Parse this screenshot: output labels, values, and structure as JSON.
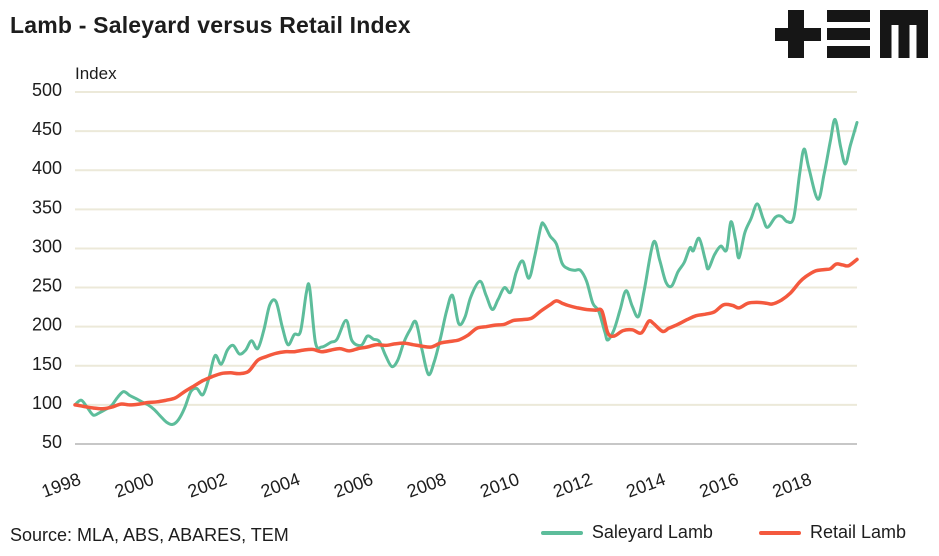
{
  "header": {
    "title": "Lamb - Saleyard versus Retail Index",
    "logo_name": "TEM"
  },
  "footer": {
    "source": "Source: MLA, ABS, ABARES, TEM"
  },
  "style": {
    "text_color": "#1d1d1d",
    "grid_color": "#ece9d9",
    "axis_color": "#c7c7c7",
    "background": "#ffffff",
    "logo_color": "#161616"
  },
  "chart_data": {
    "type": "line",
    "title": "Lamb - Saleyard versus Retail Index",
    "y_axis_title": "Index",
    "ylim": [
      50,
      500
    ],
    "y_ticks": [
      50,
      100,
      150,
      200,
      250,
      300,
      350,
      400,
      450,
      500
    ],
    "x_ticks": [
      1998,
      2000,
      2002,
      2004,
      2006,
      2008,
      2010,
      2012,
      2014,
      2016,
      2018
    ],
    "x_range": [
      1998,
      2019.4
    ],
    "grid": "horizontal",
    "legend_position": "bottom-right",
    "series": [
      {
        "name": "Saleyard Lamb",
        "color": "#5dbd9b",
        "points": [
          [
            1998.0,
            100
          ],
          [
            1998.17,
            106
          ],
          [
            1998.33,
            97
          ],
          [
            1998.5,
            87
          ],
          [
            1998.67,
            90
          ],
          [
            1998.83,
            94
          ],
          [
            1999.0,
            99
          ],
          [
            1999.17,
            110
          ],
          [
            1999.33,
            117
          ],
          [
            1999.5,
            112
          ],
          [
            1999.67,
            108
          ],
          [
            1999.83,
            104
          ],
          [
            2000.0,
            100
          ],
          [
            2000.17,
            94
          ],
          [
            2000.33,
            86
          ],
          [
            2000.5,
            78
          ],
          [
            2000.67,
            75
          ],
          [
            2000.83,
            81
          ],
          [
            2001.0,
            96
          ],
          [
            2001.17,
            117
          ],
          [
            2001.33,
            121
          ],
          [
            2001.5,
            113
          ],
          [
            2001.67,
            135
          ],
          [
            2001.83,
            163
          ],
          [
            2002.0,
            152
          ],
          [
            2002.17,
            170
          ],
          [
            2002.33,
            176
          ],
          [
            2002.5,
            165
          ],
          [
            2002.67,
            170
          ],
          [
            2002.83,
            182
          ],
          [
            2003.0,
            172
          ],
          [
            2003.17,
            196
          ],
          [
            2003.33,
            228
          ],
          [
            2003.5,
            232
          ],
          [
            2003.67,
            200
          ],
          [
            2003.83,
            177
          ],
          [
            2004.0,
            190
          ],
          [
            2004.17,
            194
          ],
          [
            2004.33,
            243
          ],
          [
            2004.42,
            250
          ],
          [
            2004.58,
            180
          ],
          [
            2004.75,
            174
          ],
          [
            2005.0,
            180
          ],
          [
            2005.17,
            184
          ],
          [
            2005.42,
            208
          ],
          [
            2005.58,
            182
          ],
          [
            2005.83,
            176
          ],
          [
            2006.0,
            188
          ],
          [
            2006.17,
            184
          ],
          [
            2006.33,
            181
          ],
          [
            2006.5,
            163
          ],
          [
            2006.67,
            149
          ],
          [
            2006.83,
            157
          ],
          [
            2007.0,
            180
          ],
          [
            2007.17,
            196
          ],
          [
            2007.33,
            206
          ],
          [
            2007.5,
            170
          ],
          [
            2007.67,
            139
          ],
          [
            2007.83,
            155
          ],
          [
            2008.0,
            185
          ],
          [
            2008.17,
            220
          ],
          [
            2008.33,
            240
          ],
          [
            2008.5,
            204
          ],
          [
            2008.67,
            212
          ],
          [
            2008.83,
            238
          ],
          [
            2009.08,
            258
          ],
          [
            2009.25,
            240
          ],
          [
            2009.42,
            222
          ],
          [
            2009.58,
            235
          ],
          [
            2009.75,
            250
          ],
          [
            2009.92,
            244
          ],
          [
            2010.08,
            270
          ],
          [
            2010.25,
            284
          ],
          [
            2010.42,
            262
          ],
          [
            2010.58,
            290
          ],
          [
            2010.75,
            328
          ],
          [
            2010.83,
            331
          ],
          [
            2011.0,
            316
          ],
          [
            2011.17,
            306
          ],
          [
            2011.33,
            281
          ],
          [
            2011.5,
            274
          ],
          [
            2011.67,
            272
          ],
          [
            2011.83,
            272
          ],
          [
            2012.0,
            258
          ],
          [
            2012.17,
            230
          ],
          [
            2012.33,
            220
          ],
          [
            2012.5,
            193
          ],
          [
            2012.58,
            183
          ],
          [
            2012.75,
            196
          ],
          [
            2012.92,
            222
          ],
          [
            2013.08,
            246
          ],
          [
            2013.25,
            226
          ],
          [
            2013.42,
            213
          ],
          [
            2013.58,
            247
          ],
          [
            2013.83,
            308
          ],
          [
            2014.0,
            285
          ],
          [
            2014.17,
            257
          ],
          [
            2014.33,
            252
          ],
          [
            2014.5,
            270
          ],
          [
            2014.67,
            282
          ],
          [
            2014.83,
            301
          ],
          [
            2014.92,
            297
          ],
          [
            2015.08,
            313
          ],
          [
            2015.25,
            285
          ],
          [
            2015.33,
            274
          ],
          [
            2015.5,
            292
          ],
          [
            2015.67,
            303
          ],
          [
            2015.83,
            298
          ],
          [
            2015.95,
            334
          ],
          [
            2016.08,
            310
          ],
          [
            2016.17,
            288
          ],
          [
            2016.33,
            320
          ],
          [
            2016.5,
            338
          ],
          [
            2016.67,
            357
          ],
          [
            2016.83,
            338
          ],
          [
            2016.95,
            327
          ],
          [
            2017.17,
            340
          ],
          [
            2017.33,
            341
          ],
          [
            2017.5,
            334
          ],
          [
            2017.67,
            340
          ],
          [
            2017.83,
            395
          ],
          [
            2017.95,
            427
          ],
          [
            2018.08,
            403
          ],
          [
            2018.33,
            363
          ],
          [
            2018.5,
            395
          ],
          [
            2018.67,
            437
          ],
          [
            2018.8,
            465
          ],
          [
            2018.95,
            430
          ],
          [
            2019.08,
            408
          ],
          [
            2019.22,
            432
          ],
          [
            2019.4,
            461
          ]
        ]
      },
      {
        "name": "Retail Lamb",
        "color": "#f4593e",
        "points": [
          [
            1998.0,
            100
          ],
          [
            1998.25,
            98
          ],
          [
            1998.5,
            96
          ],
          [
            1998.75,
            95
          ],
          [
            1999.0,
            97
          ],
          [
            1999.25,
            101
          ],
          [
            1999.5,
            100
          ],
          [
            1999.75,
            101
          ],
          [
            2000.0,
            103
          ],
          [
            2000.25,
            104
          ],
          [
            2000.5,
            106
          ],
          [
            2000.75,
            109
          ],
          [
            2001.0,
            117
          ],
          [
            2001.25,
            124
          ],
          [
            2001.5,
            131
          ],
          [
            2001.75,
            136
          ],
          [
            2002.0,
            140
          ],
          [
            2002.25,
            141
          ],
          [
            2002.5,
            140
          ],
          [
            2002.75,
            143
          ],
          [
            2003.0,
            157
          ],
          [
            2003.25,
            162
          ],
          [
            2003.5,
            166
          ],
          [
            2003.75,
            168
          ],
          [
            2004.0,
            168
          ],
          [
            2004.25,
            170
          ],
          [
            2004.5,
            171
          ],
          [
            2004.75,
            168
          ],
          [
            2005.0,
            170
          ],
          [
            2005.25,
            172
          ],
          [
            2005.5,
            169
          ],
          [
            2005.75,
            172
          ],
          [
            2006.0,
            174
          ],
          [
            2006.25,
            177
          ],
          [
            2006.5,
            176
          ],
          [
            2006.75,
            178
          ],
          [
            2007.0,
            179
          ],
          [
            2007.25,
            177
          ],
          [
            2007.5,
            175
          ],
          [
            2007.75,
            174
          ],
          [
            2008.0,
            179
          ],
          [
            2008.25,
            181
          ],
          [
            2008.5,
            183
          ],
          [
            2008.75,
            189
          ],
          [
            2009.0,
            198
          ],
          [
            2009.25,
            200
          ],
          [
            2009.5,
            202
          ],
          [
            2009.75,
            203
          ],
          [
            2010.0,
            208
          ],
          [
            2010.25,
            209
          ],
          [
            2010.5,
            211
          ],
          [
            2010.75,
            220
          ],
          [
            2011.0,
            228
          ],
          [
            2011.17,
            233
          ],
          [
            2011.33,
            230
          ],
          [
            2011.5,
            227
          ],
          [
            2011.75,
            224
          ],
          [
            2012.0,
            222
          ],
          [
            2012.25,
            221
          ],
          [
            2012.42,
            220
          ],
          [
            2012.58,
            192
          ],
          [
            2012.75,
            188
          ],
          [
            2013.0,
            195
          ],
          [
            2013.25,
            196
          ],
          [
            2013.5,
            192
          ],
          [
            2013.7,
            207
          ],
          [
            2013.83,
            204
          ],
          [
            2014.08,
            194
          ],
          [
            2014.25,
            198
          ],
          [
            2014.5,
            203
          ],
          [
            2014.75,
            209
          ],
          [
            2015.0,
            214
          ],
          [
            2015.25,
            216
          ],
          [
            2015.5,
            219
          ],
          [
            2015.75,
            228
          ],
          [
            2016.0,
            227
          ],
          [
            2016.17,
            224
          ],
          [
            2016.42,
            230
          ],
          [
            2016.67,
            231
          ],
          [
            2016.92,
            230
          ],
          [
            2017.08,
            229
          ],
          [
            2017.33,
            234
          ],
          [
            2017.58,
            243
          ],
          [
            2017.83,
            257
          ],
          [
            2018.0,
            264
          ],
          [
            2018.25,
            271
          ],
          [
            2018.5,
            273
          ],
          [
            2018.67,
            274
          ],
          [
            2018.83,
            280
          ],
          [
            2019.0,
            279
          ],
          [
            2019.17,
            278
          ],
          [
            2019.4,
            286
          ]
        ]
      }
    ]
  }
}
